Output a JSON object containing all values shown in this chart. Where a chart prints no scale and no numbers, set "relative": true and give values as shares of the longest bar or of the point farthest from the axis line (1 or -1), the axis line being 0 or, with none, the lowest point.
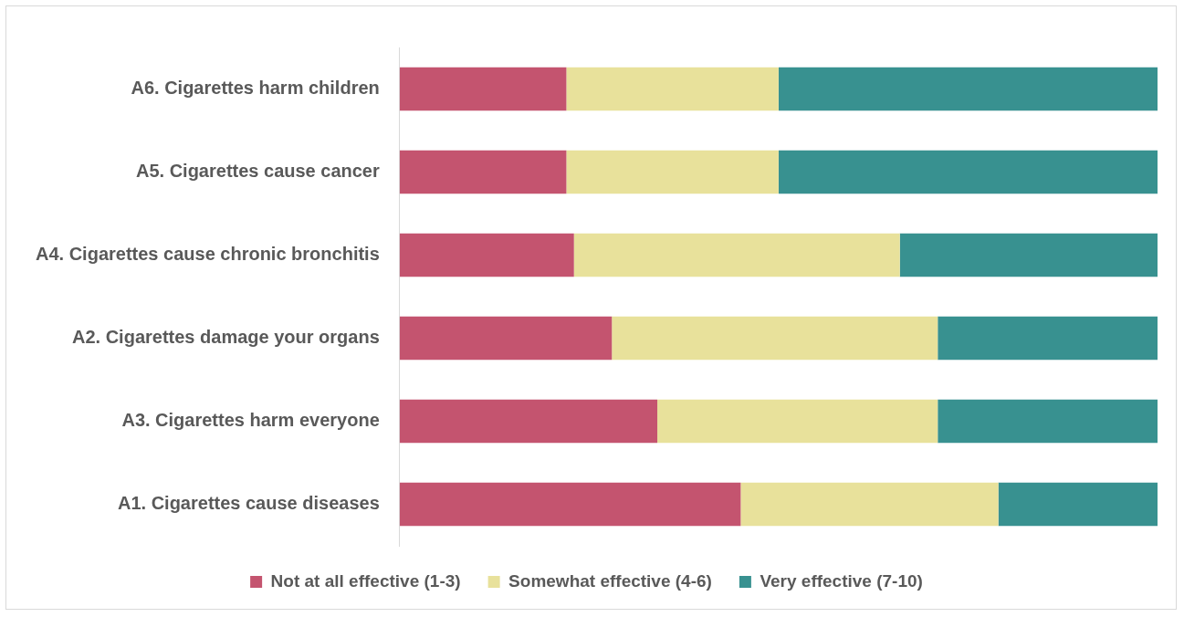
{
  "chart_data": {
    "type": "bar",
    "orientation": "horizontal",
    "stacked": true,
    "relative": true,
    "legend": "bottom",
    "categories": [
      "A6. Cigarettes harm children",
      "A5. Cigarettes cause cancer",
      "A4. Cigarettes cause chronic bronchitis",
      "A2. Cigarettes damage your organs",
      "A3. Cigarettes harm everyone",
      "A1. Cigarettes cause diseases"
    ],
    "series": [
      {
        "name": "Not at all effective (1-3)",
        "color": "#c4546f",
        "values": [
          0.22,
          0.22,
          0.23,
          0.28,
          0.34,
          0.45
        ]
      },
      {
        "name": "Somewhat effective (4-6)",
        "color": "#e8e19b",
        "values": [
          0.28,
          0.28,
          0.43,
          0.43,
          0.37,
          0.34
        ]
      },
      {
        "name": "Very effective (7-10)",
        "color": "#389190",
        "values": [
          0.5,
          0.5,
          0.34,
          0.29,
          0.29,
          0.21
        ]
      }
    ]
  }
}
